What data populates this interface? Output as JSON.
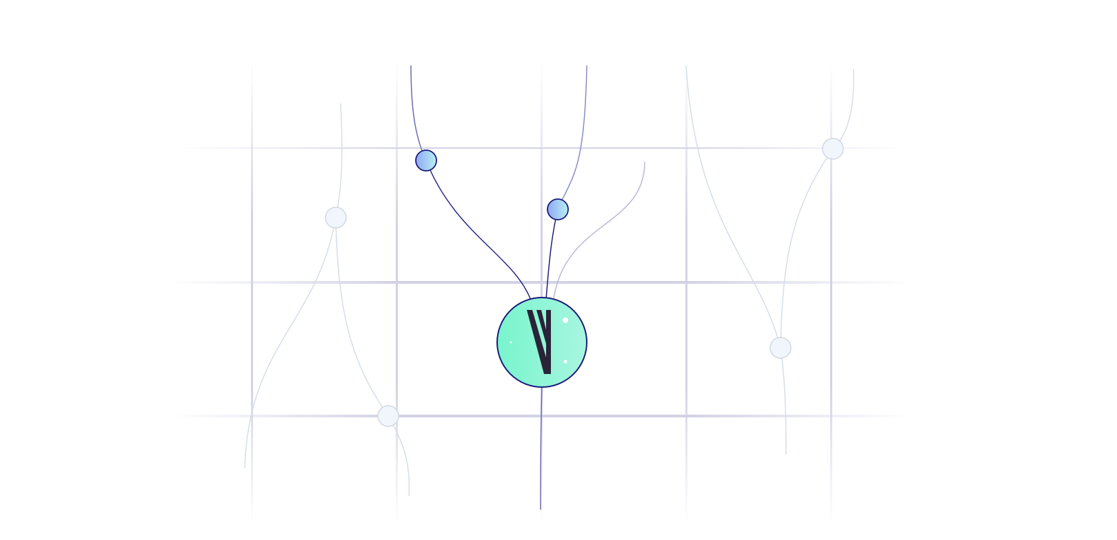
{
  "colors": {
    "background": "#ffffff",
    "grid": "#d2d2e6",
    "active_line": "#1e1e78",
    "inactive_line": "#d6dde8",
    "hub_fill_start": "#78f5cc",
    "hub_fill_end": "#a8f5e0",
    "hub_stroke": "#1a1a7a",
    "logo_mark": "#2a2438",
    "active_node_start": "#8fa8f5",
    "active_node_end": "#b8f0f0",
    "inactive_node": "#f0f6fc"
  },
  "icons": {
    "hub": "logo-mark-icon"
  }
}
